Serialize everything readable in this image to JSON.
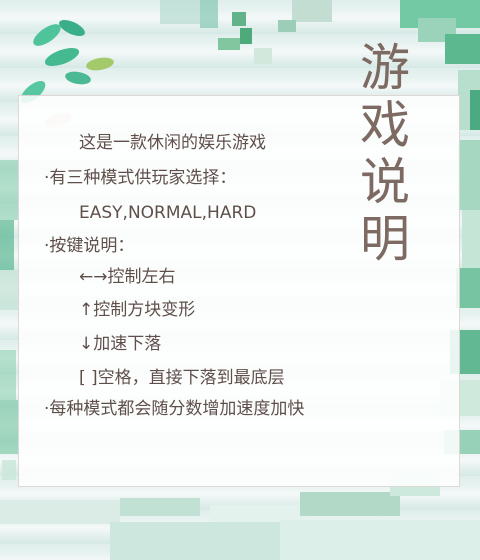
{
  "title": "游戏\n说明",
  "title_color": "#7d6a62",
  "text_color": "#5f4f4b",
  "lines": [
    "这是一款休闲的娱乐游戏",
    "·有三种模式供玩家选择：",
    "EASY,NORMAL,HARD",
    "·按键说明：",
    "←→控制左右",
    "↑控制方块变形",
    "↓加速下落",
    "[ ]空格，直接下落到最底层",
    "·每种模式都会随分数增加速度加快"
  ],
  "icons": [
    "leaf-icon",
    "flower-icon"
  ]
}
